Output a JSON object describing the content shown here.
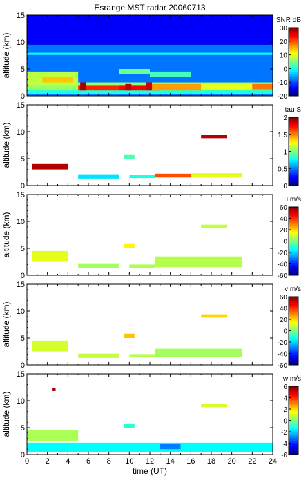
{
  "chart_data": {
    "type": "heatmap",
    "title": "Esrange MST radar 20060713",
    "xlabel": "time (UT)",
    "xlim": [
      0,
      24
    ],
    "x_ticks": [
      "0",
      "2",
      "4",
      "6",
      "8",
      "10",
      "12",
      "14",
      "16",
      "18",
      "20",
      "22",
      "24"
    ],
    "panels": [
      {
        "name": "snr",
        "ylabel": "altitude (km)",
        "ylim": [
          0,
          15
        ],
        "y_ticks": [
          "0",
          "5",
          "10",
          "15"
        ],
        "colorbar": {
          "label": "SNR dB",
          "range": [
            -20,
            30
          ],
          "ticks": [
            "30",
            "20",
            "10",
            "0",
            "-10",
            "-20"
          ]
        },
        "regions": [
          {
            "x": [
              0,
              24
            ],
            "y": [
              0,
              15
            ],
            "value": -14
          },
          {
            "x": [
              0,
              24
            ],
            "y": [
              0,
              9.5
            ],
            "value": -8
          },
          {
            "x": [
              0,
              24
            ],
            "y": [
              7.6,
              8.0
            ],
            "value": -1
          },
          {
            "x": [
              0,
              24
            ],
            "y": [
              0.3,
              1.2
            ],
            "value": 0
          },
          {
            "x": [
              0,
              24
            ],
            "y": [
              1.0,
              2.5
            ],
            "value": 6
          },
          {
            "x": [
              0,
              5
            ],
            "y": [
              2.0,
              4.5
            ],
            "value": 8
          },
          {
            "x": [
              1.5,
              4.5
            ],
            "y": [
              2.5,
              3.5
            ],
            "value": 14
          },
          {
            "x": [
              5,
              9
            ],
            "y": [
              1.0,
              2.0
            ],
            "value": 22
          },
          {
            "x": [
              9,
              13
            ],
            "y": [
              1.0,
              2.0
            ],
            "value": 24
          },
          {
            "x": [
              12,
              17
            ],
            "y": [
              1.0,
              2.2
            ],
            "value": 16
          },
          {
            "x": [
              17,
              24
            ],
            "y": [
              1.2,
              2.2
            ],
            "value": 10
          },
          {
            "x": [
              9,
              12
            ],
            "y": [
              4.0,
              5.0
            ],
            "value": 4
          },
          {
            "x": [
              12,
              16
            ],
            "y": [
              3.5,
              4.5
            ],
            "value": 2
          },
          {
            "x": [
              5.2,
              5.8
            ],
            "y": [
              1.0,
              2.5
            ],
            "value": 28
          },
          {
            "x": [
              9.6,
              10.2
            ],
            "y": [
              1.0,
              2.2
            ],
            "value": 27
          },
          {
            "x": [
              11.6,
              12.2
            ],
            "y": [
              1.0,
              2.5
            ],
            "value": 26
          },
          {
            "x": [
              22,
              24
            ],
            "y": [
              1.2,
              2.2
            ],
            "value": 18
          }
        ]
      },
      {
        "name": "tau",
        "ylabel": "altitude (km)",
        "ylim": [
          0,
          15
        ],
        "y_ticks": [
          "0",
          "5",
          "10",
          "15"
        ],
        "colorbar": {
          "label": "tau S",
          "range": [
            0,
            2
          ],
          "ticks": [
            "2",
            "1.5",
            "1",
            "0.5",
            "0"
          ]
        },
        "regions": [
          {
            "x": [
              0.5,
              4
            ],
            "y": [
              3.0,
              4.0
            ],
            "value": 1.9
          },
          {
            "x": [
              5,
              9
            ],
            "y": [
              1.3,
              2.1
            ],
            "value": 0.7
          },
          {
            "x": [
              9.5,
              10.5
            ],
            "y": [
              5.0,
              5.8
            ],
            "value": 0.9
          },
          {
            "x": [
              10,
              12.5
            ],
            "y": [
              1.4,
              2.0
            ],
            "value": 0.8
          },
          {
            "x": [
              12.5,
              16
            ],
            "y": [
              1.5,
              2.2
            ],
            "value": 1.6
          },
          {
            "x": [
              16,
              21
            ],
            "y": [
              1.5,
              2.3
            ],
            "value": 1.2
          },
          {
            "x": [
              17,
              19.5
            ],
            "y": [
              8.8,
              9.4
            ],
            "value": 1.9
          }
        ]
      },
      {
        "name": "u",
        "ylabel": "altitude (km)",
        "ylim": [
          0,
          15
        ],
        "y_ticks": [
          "0",
          "5",
          "10",
          "15"
        ],
        "colorbar": {
          "label": "u m/s",
          "range": [
            -60,
            60
          ],
          "ticks": [
            "60",
            "40",
            "20",
            "0",
            "-20",
            "-40",
            "-60"
          ]
        },
        "regions": [
          {
            "x": [
              0.5,
              4
            ],
            "y": [
              2.5,
              4.5
            ],
            "value": 12
          },
          {
            "x": [
              5,
              9
            ],
            "y": [
              1.3,
              2.1
            ],
            "value": 4
          },
          {
            "x": [
              9.5,
              10.5
            ],
            "y": [
              5.0,
              5.8
            ],
            "value": 16
          },
          {
            "x": [
              10,
              12.5
            ],
            "y": [
              1.4,
              2.0
            ],
            "value": 5
          },
          {
            "x": [
              12.5,
              21
            ],
            "y": [
              1.5,
              3.5
            ],
            "value": 6
          },
          {
            "x": [
              17,
              19.5
            ],
            "y": [
              8.8,
              9.4
            ],
            "value": 8
          }
        ]
      },
      {
        "name": "v",
        "ylabel": "altitude (km)",
        "ylim": [
          0,
          15
        ],
        "y_ticks": [
          "0",
          "5",
          "10",
          "15"
        ],
        "colorbar": {
          "label": "v m/s",
          "range": [
            -60,
            60
          ],
          "ticks": [
            "60",
            "40",
            "20",
            "0",
            "-20",
            "-40",
            "-60"
          ]
        },
        "regions": [
          {
            "x": [
              0.5,
              4
            ],
            "y": [
              2.5,
              4.5
            ],
            "value": 10
          },
          {
            "x": [
              5,
              9
            ],
            "y": [
              1.3,
              2.1
            ],
            "value": 8
          },
          {
            "x": [
              9.5,
              10.5
            ],
            "y": [
              5.0,
              5.8
            ],
            "value": 22
          },
          {
            "x": [
              10,
              12.5
            ],
            "y": [
              1.4,
              2.0
            ],
            "value": 6
          },
          {
            "x": [
              12.5,
              21
            ],
            "y": [
              1.5,
              3.0
            ],
            "value": 4
          },
          {
            "x": [
              17,
              19.5
            ],
            "y": [
              8.8,
              9.4
            ],
            "value": 20
          }
        ]
      },
      {
        "name": "w",
        "ylabel": "altitude (km)",
        "ylim": [
          0,
          15
        ],
        "y_ticks": [
          "0",
          "5",
          "10",
          "15"
        ],
        "colorbar": {
          "label": "w m/s",
          "range": [
            -6,
            6
          ],
          "ticks": [
            "6",
            "4",
            "2",
            "0",
            "-2",
            "-4",
            "-6"
          ]
        },
        "regions": [
          {
            "x": [
              0,
              24
            ],
            "y": [
              0.5,
              2.2
            ],
            "value": -1.5
          },
          {
            "x": [
              0,
              5
            ],
            "y": [
              2.5,
              4.5
            ],
            "value": 0.5
          },
          {
            "x": [
              9.5,
              10.5
            ],
            "y": [
              5.0,
              5.8
            ],
            "value": -1
          },
          {
            "x": [
              2.5,
              2.8
            ],
            "y": [
              11.8,
              12.4
            ],
            "value": 5.5
          },
          {
            "x": [
              17,
              19.5
            ],
            "y": [
              8.8,
              9.4
            ],
            "value": 1
          },
          {
            "x": [
              13,
              15
            ],
            "y": [
              1.0,
              2.0
            ],
            "value": -3
          }
        ]
      }
    ]
  }
}
